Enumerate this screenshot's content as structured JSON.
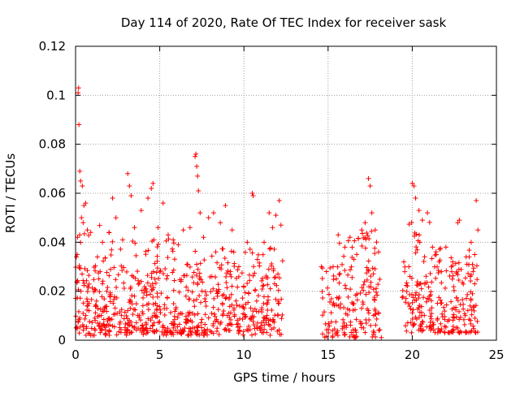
{
  "chart_data": {
    "type": "scatter",
    "title": "Day 114 of 2020, Rate Of TEC Index for receiver sask",
    "xlabel": "GPS time / hours",
    "ylabel": "ROTI / TECUs",
    "xlim": [
      0,
      25
    ],
    "ylim": [
      0,
      0.12
    ],
    "x_ticks": [
      "0",
      "5",
      "10",
      "15",
      "20",
      "25"
    ],
    "y_ticks": [
      "0",
      "0.02",
      "0.04",
      "0.06",
      "0.08",
      "0.1",
      "0.12"
    ],
    "grid": true,
    "marker": "+",
    "series": [
      {
        "color": "#ff0000",
        "points": [
          [
            0.05,
            0.034
          ],
          [
            0.1,
            0.035
          ],
          [
            0.12,
            0.042
          ],
          [
            0.15,
            0.101
          ],
          [
            0.18,
            0.103
          ],
          [
            0.2,
            0.088
          ],
          [
            0.25,
            0.069
          ],
          [
            0.3,
            0.065
          ],
          [
            0.35,
            0.05
          ],
          [
            0.4,
            0.063
          ],
          [
            0.45,
            0.048
          ],
          [
            0.5,
            0.055
          ],
          [
            0.6,
            0.056
          ],
          [
            0.7,
            0.045
          ],
          [
            0.9,
            0.044
          ],
          [
            1.3,
            0.034
          ],
          [
            1.6,
            0.04
          ],
          [
            2.0,
            0.044
          ],
          [
            2.2,
            0.058
          ],
          [
            2.4,
            0.05
          ],
          [
            2.8,
            0.041
          ],
          [
            3.1,
            0.068
          ],
          [
            3.2,
            0.063
          ],
          [
            3.3,
            0.059
          ],
          [
            3.5,
            0.046
          ],
          [
            3.9,
            0.053
          ],
          [
            4.3,
            0.058
          ],
          [
            4.5,
            0.062
          ],
          [
            4.6,
            0.064
          ],
          [
            4.9,
            0.046
          ],
          [
            5.2,
            0.056
          ],
          [
            5.5,
            0.043
          ],
          [
            5.8,
            0.041
          ],
          [
            6.1,
            0.039
          ],
          [
            6.4,
            0.045
          ],
          [
            6.8,
            0.046
          ],
          [
            7.1,
            0.075
          ],
          [
            7.15,
            0.076
          ],
          [
            7.2,
            0.071
          ],
          [
            7.25,
            0.067
          ],
          [
            7.3,
            0.061
          ],
          [
            7.4,
            0.052
          ],
          [
            7.6,
            0.042
          ],
          [
            7.9,
            0.05
          ],
          [
            8.2,
            0.052
          ],
          [
            8.6,
            0.048
          ],
          [
            8.9,
            0.055
          ],
          [
            9.3,
            0.045
          ],
          [
            9.7,
            0.03
          ],
          [
            10.2,
            0.04
          ],
          [
            10.5,
            0.06
          ],
          [
            10.55,
            0.059
          ],
          [
            10.8,
            0.033
          ],
          [
            11.2,
            0.04
          ],
          [
            11.5,
            0.052
          ],
          [
            11.7,
            0.046
          ],
          [
            11.9,
            0.051
          ],
          [
            12.1,
            0.057
          ],
          [
            12.2,
            0.047
          ],
          [
            14.6,
            0.03
          ],
          [
            14.9,
            0.028
          ],
          [
            15.3,
            0.03
          ],
          [
            15.6,
            0.043
          ],
          [
            16.0,
            0.038
          ],
          [
            16.3,
            0.042
          ],
          [
            16.7,
            0.035
          ],
          [
            17.0,
            0.045
          ],
          [
            17.2,
            0.048
          ],
          [
            17.4,
            0.066
          ],
          [
            17.5,
            0.063
          ],
          [
            17.6,
            0.052
          ],
          [
            17.8,
            0.045
          ],
          [
            18.0,
            0.036
          ],
          [
            19.5,
            0.032
          ],
          [
            19.8,
            0.03
          ],
          [
            20.0,
            0.064
          ],
          [
            20.1,
            0.063
          ],
          [
            20.2,
            0.058
          ],
          [
            20.4,
            0.053
          ],
          [
            20.6,
            0.049
          ],
          [
            20.9,
            0.052
          ],
          [
            21.2,
            0.038
          ],
          [
            21.6,
            0.032
          ],
          [
            22.0,
            0.038
          ],
          [
            22.4,
            0.032
          ],
          [
            22.7,
            0.048
          ],
          [
            22.8,
            0.049
          ],
          [
            23.2,
            0.034
          ],
          [
            23.5,
            0.04
          ],
          [
            23.8,
            0.057
          ],
          [
            23.9,
            0.045
          ]
        ],
        "bands": [
          {
            "x": [
              0.0,
              12.3
            ],
            "y": [
              0.002,
              0.03
            ]
          },
          {
            "x": [
              0.0,
              2.0
            ],
            "y": [
              0.004,
              0.05
            ]
          },
          {
            "x": [
              2.0,
              6.0
            ],
            "y": [
              0.003,
              0.042
            ]
          },
          {
            "x": [
              6.0,
              12.3
            ],
            "y": [
              0.003,
              0.038
            ]
          },
          {
            "x": [
              14.6,
              18.2
            ],
            "y": [
              0.001,
              0.03
            ]
          },
          {
            "x": [
              15.5,
              17.9
            ],
            "y": [
              0.003,
              0.045
            ]
          },
          {
            "x": [
              19.4,
              23.9
            ],
            "y": [
              0.003,
              0.03
            ]
          },
          {
            "x": [
              19.8,
              21.3
            ],
            "y": [
              0.004,
              0.05
            ]
          },
          {
            "x": [
              21.3,
              23.9
            ],
            "y": [
              0.003,
              0.038
            ]
          }
        ]
      }
    ]
  }
}
